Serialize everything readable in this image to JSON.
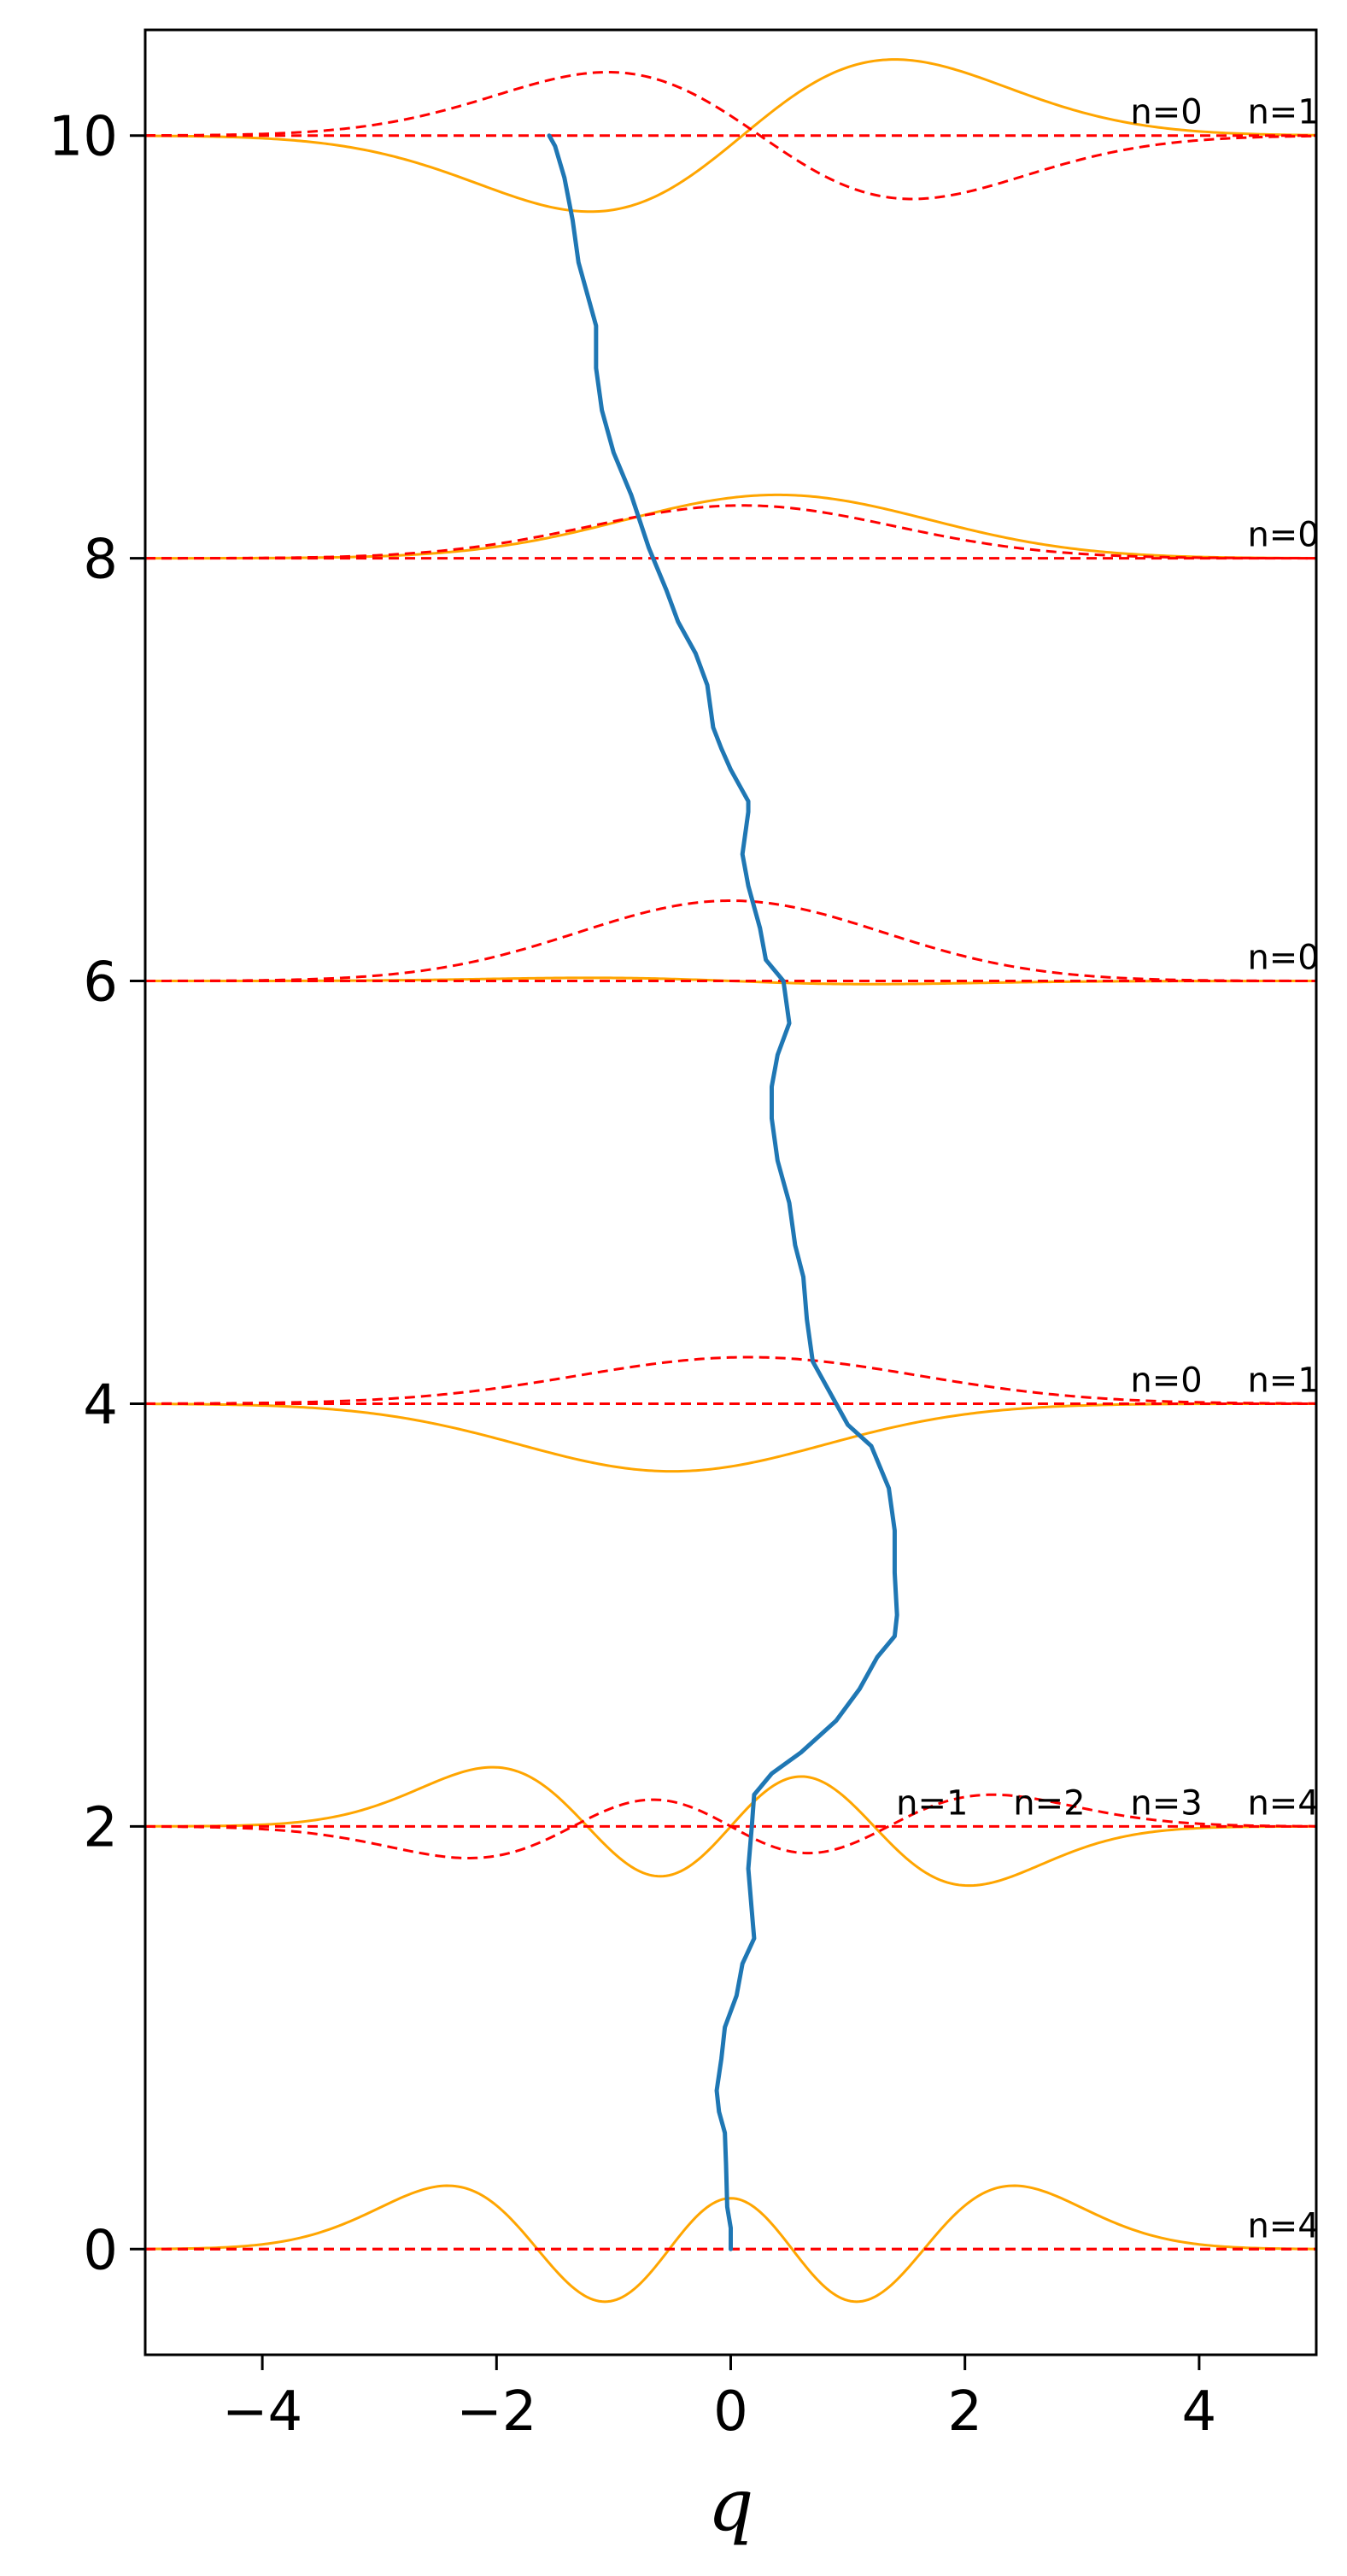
{
  "chart_data": {
    "type": "line",
    "title": "",
    "xlabel": "q",
    "ylabel": "",
    "xlim": [
      -5,
      5
    ],
    "ylim": [
      -0.5,
      10.5
    ],
    "xticks": [
      -4,
      -2,
      0,
      2,
      4
    ],
    "xtick_labels": [
      "−4",
      "−2",
      "0",
      "2",
      "4"
    ],
    "yticks": [
      0,
      2,
      4,
      6,
      8,
      10
    ],
    "ytick_labels": [
      "0",
      "2",
      "4",
      "6",
      "8",
      "10"
    ],
    "grid": false,
    "colors": {
      "trajectory": "#1f77b4",
      "wavefunction": "#ffa500",
      "density": "#ff0000"
    },
    "baselines": [
      0,
      2,
      4,
      6,
      8,
      10
    ],
    "state_labels": [
      {
        "y": 10,
        "labels": [
          "n=0",
          "n=1"
        ]
      },
      {
        "y": 8,
        "labels": [
          "n=0"
        ]
      },
      {
        "y": 6,
        "labels": [
          "n=0"
        ]
      },
      {
        "y": 4,
        "labels": [
          "n=0",
          "n=1"
        ]
      },
      {
        "y": 2,
        "labels": [
          "n=1",
          "n=2",
          "n=3",
          "n=4"
        ]
      },
      {
        "y": 0,
        "labels": [
          "n=4"
        ]
      }
    ],
    "series": [
      {
        "kind": "trajectory",
        "points": [
          [
            0.0,
            0.0
          ],
          [
            0.0,
            0.1
          ],
          [
            -0.03,
            0.2
          ],
          [
            -0.04,
            0.4
          ],
          [
            -0.05,
            0.55
          ],
          [
            -0.1,
            0.65
          ],
          [
            -0.12,
            0.75
          ],
          [
            -0.08,
            0.9
          ],
          [
            -0.05,
            1.05
          ],
          [
            0.05,
            1.2
          ],
          [
            0.1,
            1.35
          ],
          [
            0.2,
            1.47
          ],
          [
            0.18,
            1.6
          ],
          [
            0.15,
            1.8
          ],
          [
            0.18,
            2.0
          ],
          [
            0.2,
            2.15
          ],
          [
            0.35,
            2.25
          ],
          [
            0.6,
            2.35
          ],
          [
            0.9,
            2.5
          ],
          [
            1.1,
            2.65
          ],
          [
            1.25,
            2.8
          ],
          [
            1.4,
            2.9
          ],
          [
            1.42,
            3.0
          ],
          [
            1.4,
            3.2
          ],
          [
            1.4,
            3.4
          ],
          [
            1.35,
            3.6
          ],
          [
            1.2,
            3.8
          ],
          [
            1.0,
            3.9
          ],
          [
            0.8,
            4.1
          ],
          [
            0.7,
            4.2
          ],
          [
            0.65,
            4.4
          ],
          [
            0.62,
            4.6
          ],
          [
            0.55,
            4.75
          ],
          [
            0.5,
            4.95
          ],
          [
            0.4,
            5.15
          ],
          [
            0.35,
            5.35
          ],
          [
            0.35,
            5.5
          ],
          [
            0.4,
            5.65
          ],
          [
            0.5,
            5.8
          ],
          [
            0.45,
            6.0
          ],
          [
            0.3,
            6.1
          ],
          [
            0.25,
            6.25
          ],
          [
            0.15,
            6.45
          ],
          [
            0.1,
            6.6
          ],
          [
            0.15,
            6.8
          ],
          [
            0.15,
            6.85
          ],
          [
            0.0,
            7.0
          ],
          [
            -0.08,
            7.1
          ],
          [
            -0.15,
            7.2
          ],
          [
            -0.2,
            7.4
          ],
          [
            -0.3,
            7.55
          ],
          [
            -0.45,
            7.7
          ],
          [
            -0.55,
            7.85
          ],
          [
            -0.7,
            8.05
          ],
          [
            -0.85,
            8.3
          ],
          [
            -1.0,
            8.5
          ],
          [
            -1.1,
            8.7
          ],
          [
            -1.15,
            8.9
          ],
          [
            -1.15,
            9.1
          ],
          [
            -1.25,
            9.3
          ],
          [
            -1.3,
            9.4
          ],
          [
            -1.35,
            9.6
          ],
          [
            -1.42,
            9.8
          ],
          [
            -1.5,
            9.95
          ],
          [
            -1.55,
            10.0
          ]
        ]
      },
      {
        "kind": "wavefunction",
        "baseline": 10,
        "n": 1,
        "amp": 0.36,
        "center": 0.1,
        "scale": 1.3,
        "sign": 1
      },
      {
        "kind": "density",
        "baseline": 10,
        "n": 1,
        "amp": 0.3,
        "center": 0.25,
        "scale": 1.3,
        "sign": -1
      },
      {
        "kind": "wavefunction",
        "baseline": 8,
        "n": 0,
        "amp": 0.3,
        "center": 0.4,
        "scale": 1.3,
        "sign": 1
      },
      {
        "kind": "density",
        "baseline": 8,
        "n": 0,
        "amp": 0.25,
        "center": 0.1,
        "scale": 1.3,
        "sign": 1
      },
      {
        "kind": "wavefunction",
        "baseline": 6,
        "n": 1,
        "amp": 0.015,
        "center": 0.0,
        "scale": 1.2,
        "sign": -1
      },
      {
        "kind": "density",
        "baseline": 6,
        "n": 0,
        "amp": 0.38,
        "center": 0.0,
        "scale": 1.3,
        "sign": 1
      },
      {
        "kind": "wavefunction",
        "baseline": 4,
        "n": 0,
        "amp": -0.32,
        "center": -0.5,
        "scale": 1.3,
        "sign": 1
      },
      {
        "kind": "density",
        "baseline": 4,
        "n": 0,
        "amp": 0.22,
        "center": 0.15,
        "scale": 1.45,
        "sign": 1
      },
      {
        "kind": "wavefunction",
        "baseline": 2,
        "n": 3,
        "amp": 0.28,
        "center": 0.0,
        "scale": 1.0,
        "sign": -1
      },
      {
        "kind": "density",
        "baseline": 2,
        "n": 3,
        "amp": 0.15,
        "center": 0.0,
        "scale": 1.1,
        "sign": 1
      },
      {
        "kind": "wavefunction",
        "baseline": 0,
        "n": 4,
        "amp": 0.3,
        "center": 0.0,
        "scale": 1.0,
        "sign": 1
      },
      {
        "kind": "density",
        "baseline": 0,
        "n": 0,
        "amp": 0.0,
        "center": 0.0,
        "scale": 1.0,
        "sign": 1
      }
    ]
  }
}
